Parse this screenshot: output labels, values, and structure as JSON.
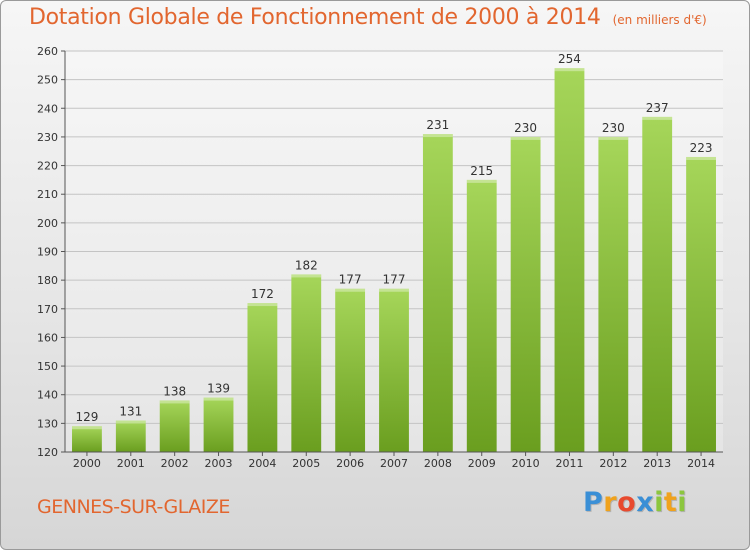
{
  "header": {
    "title": "Dotation Globale de Fonctionnement de 2000 à 2014",
    "subtitle": "(en milliers d'€)"
  },
  "footer": {
    "commune": "GENNES-SUR-GLAIZE",
    "logo_letters": [
      "P",
      "r",
      "o",
      "x",
      "i",
      "t",
      "i"
    ],
    "logo_colors": [
      "#3a8fd6",
      "#f0a21c",
      "#e84a2e",
      "#3a8fd6",
      "#8cc63e",
      "#f0a21c",
      "#8cc63e"
    ]
  },
  "colors": {
    "bar_light": "#a6d65a",
    "bar_dark": "#6a9e1f",
    "text_accent": "#e2662f"
  },
  "chart_data": {
    "type": "bar",
    "categories": [
      "2000",
      "2001",
      "2002",
      "2003",
      "2004",
      "2005",
      "2006",
      "2007",
      "2008",
      "2009",
      "2010",
      "2011",
      "2012",
      "2013",
      "2014"
    ],
    "values": [
      129,
      131,
      138,
      139,
      172,
      182,
      177,
      177,
      231,
      215,
      230,
      254,
      230,
      237,
      223
    ],
    "title": "Dotation Globale de Fonctionnement de 2000 à 2014",
    "subtitle": "(en milliers d'€)",
    "ylim": [
      120,
      260
    ],
    "yticks": [
      120,
      130,
      140,
      150,
      160,
      170,
      180,
      190,
      200,
      210,
      220,
      230,
      240,
      250,
      260
    ],
    "grid": true,
    "data_labels": true
  }
}
